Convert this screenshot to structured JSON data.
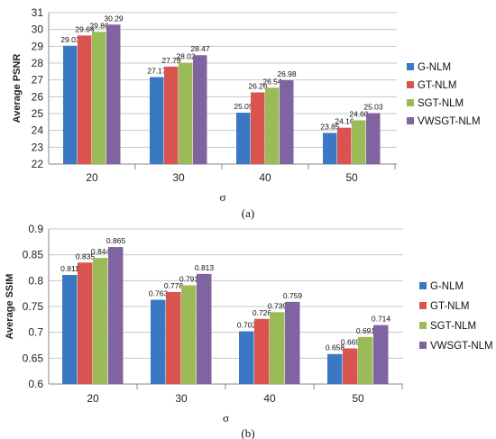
{
  "colors": {
    "G-NLM": "#3a78c3",
    "GT-NLM": "#d9534f",
    "SGT-NLM": "#9bbb59",
    "VWSGT-NLM": "#8064a2",
    "grid": "#c8c8c8"
  },
  "chart_data": [
    {
      "type": "bar",
      "caption": "(a)",
      "ylabel": "Average  PSNR",
      "xlabel": "σ",
      "categories": [
        "20",
        "30",
        "40",
        "50"
      ],
      "ylim": [
        22,
        31
      ],
      "yticks": [
        22,
        23,
        24,
        25,
        26,
        27,
        28,
        29,
        30,
        31
      ],
      "ytick_labels": [
        "22",
        "23",
        "24",
        "25",
        "26",
        "27",
        "28",
        "29",
        "30",
        "31"
      ],
      "grid": true,
      "legend_position": "right",
      "series": [
        {
          "name": "G-NLM",
          "values": [
            29.03,
            27.17,
            25.05,
            23.85
          ],
          "labels": [
            "29.03",
            "27.17",
            "25.05",
            "23.85"
          ]
        },
        {
          "name": "GT-NLM",
          "values": [
            29.64,
            27.79,
            26.26,
            24.16
          ],
          "labels": [
            "29.64",
            "27.79",
            "26.26",
            "24.16"
          ]
        },
        {
          "name": "SGT-NLM",
          "values": [
            29.86,
            28.02,
            26.54,
            24.6
          ],
          "labels": [
            "29.86",
            "28.02",
            "26.54",
            "24.60"
          ]
        },
        {
          "name": "VWSGT-NLM",
          "values": [
            30.29,
            28.47,
            26.98,
            25.03
          ],
          "labels": [
            "30.29",
            "28.47",
            "26.98",
            "25.03"
          ]
        }
      ]
    },
    {
      "type": "bar",
      "caption": "(b)",
      "ylabel": "Average  SSIM",
      "xlabel": "σ",
      "categories": [
        "20",
        "30",
        "40",
        "50"
      ],
      "ylim": [
        0.6,
        0.9
      ],
      "yticks": [
        0.6,
        0.65,
        0.7,
        0.75,
        0.8,
        0.85,
        0.9
      ],
      "ytick_labels": [
        "0.6",
        "0.65",
        "0.7",
        "0.75",
        "0.8",
        "0.85",
        "0.9"
      ],
      "grid": true,
      "legend_position": "right",
      "series": [
        {
          "name": "G-NLM",
          "values": [
            0.811,
            0.763,
            0.702,
            0.658
          ],
          "labels": [
            "0.811",
            "0.763",
            "0.702",
            "0.658"
          ]
        },
        {
          "name": "GT-NLM",
          "values": [
            0.835,
            0.778,
            0.726,
            0.669
          ],
          "labels": [
            "0.835",
            "0.778",
            "0.726",
            "0.669"
          ]
        },
        {
          "name": "SGT-NLM",
          "values": [
            0.844,
            0.791,
            0.739,
            0.691
          ],
          "labels": [
            "0.844",
            "0.791",
            "0.739",
            "0.691"
          ]
        },
        {
          "name": "VWSGT-NLM",
          "values": [
            0.865,
            0.813,
            0.759,
            0.714
          ],
          "labels": [
            "0.865",
            "0.813",
            "0.759",
            "0.714"
          ]
        }
      ]
    }
  ]
}
